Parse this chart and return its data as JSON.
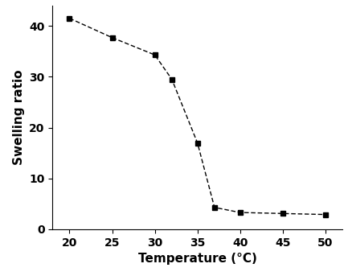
{
  "x": [
    20,
    25,
    30,
    32,
    35,
    37,
    40,
    45,
    50
  ],
  "y": [
    41.5,
    37.7,
    34.3,
    29.5,
    17.0,
    4.3,
    3.3,
    3.1,
    2.9
  ],
  "xlabel": "Temperature (°C)",
  "ylabel": "Swelling ratio",
  "xlim": [
    18,
    52
  ],
  "ylim": [
    0,
    44
  ],
  "xticks": [
    20,
    25,
    30,
    35,
    40,
    45,
    50
  ],
  "yticks": [
    0,
    10,
    20,
    30,
    40
  ],
  "line_color": "#000000",
  "marker": "s",
  "marker_color": "#000000",
  "marker_size": 5,
  "line_width": 1.0,
  "line_style": "--",
  "background_color": "#ffffff",
  "xlabel_fontsize": 11,
  "ylabel_fontsize": 11,
  "tick_fontsize": 10,
  "font_weight": "bold"
}
